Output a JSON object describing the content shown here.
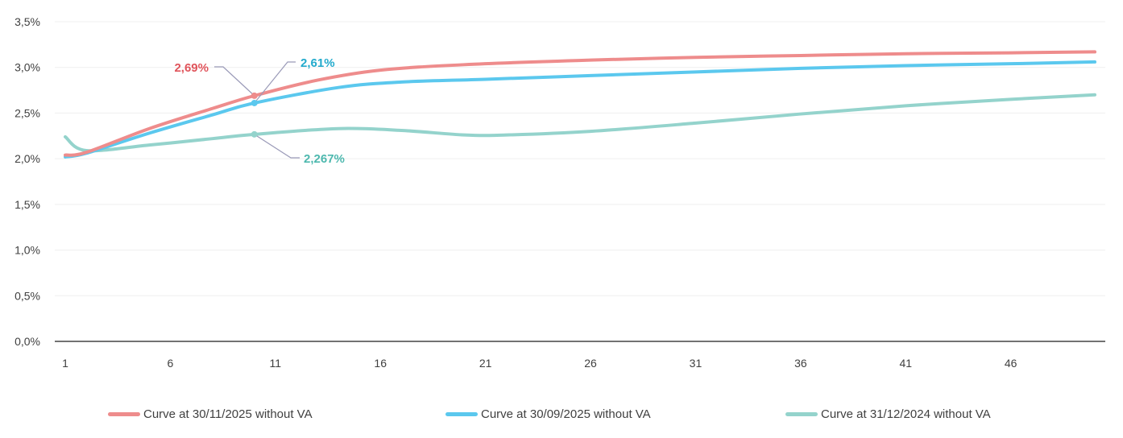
{
  "chart_data": {
    "type": "line",
    "title": "",
    "xlabel": "",
    "ylabel": "",
    "xlim": [
      1,
      50
    ],
    "ylim": [
      0,
      3.5
    ],
    "x_ticks": [
      1,
      6,
      11,
      16,
      21,
      26,
      31,
      36,
      41,
      46
    ],
    "x_tick_labels": [
      "1",
      "6",
      "11",
      "16",
      "21",
      "26",
      "31",
      "36",
      "41",
      "46"
    ],
    "y_ticks": [
      0,
      0.5,
      1.0,
      1.5,
      2.0,
      2.5,
      3.0,
      3.5
    ],
    "y_tick_labels": [
      "0,0%",
      "0,5%",
      "1,0%",
      "1,5%",
      "2,0%",
      "2,5%",
      "3,0%",
      "3,5%"
    ],
    "grid": true,
    "legend_position": "bottom",
    "series": [
      {
        "name": "Curve at 30/11/2025 without VA",
        "color": "#ee8c8c",
        "x": [
          1,
          2,
          5,
          8,
          10,
          13,
          16,
          20,
          26,
          31,
          36,
          41,
          46,
          50
        ],
        "values": [
          2.04,
          2.07,
          2.33,
          2.55,
          2.69,
          2.86,
          2.97,
          3.03,
          3.08,
          3.11,
          3.13,
          3.15,
          3.16,
          3.17
        ]
      },
      {
        "name": "Curve at 30/09/2025 without VA",
        "color": "#5bc8ee",
        "x": [
          1,
          2,
          5,
          8,
          10,
          14,
          17,
          21,
          26,
          31,
          36,
          41,
          46,
          50
        ],
        "values": [
          2.02,
          2.06,
          2.28,
          2.48,
          2.61,
          2.78,
          2.84,
          2.87,
          2.91,
          2.95,
          2.99,
          3.02,
          3.04,
          3.06
        ]
      },
      {
        "name": "Curve at 31/12/2024 without VA",
        "color": "#94d3cc",
        "x": [
          1,
          2,
          5,
          8,
          10,
          14,
          17,
          20,
          22,
          26,
          31,
          36,
          41,
          46,
          50
        ],
        "values": [
          2.24,
          2.09,
          2.15,
          2.22,
          2.267,
          2.33,
          2.31,
          2.26,
          2.26,
          2.3,
          2.39,
          2.49,
          2.58,
          2.65,
          2.7
        ]
      }
    ],
    "annotations": [
      {
        "series": 0,
        "x": 10,
        "value": 2.69,
        "label": "2,69%",
        "color": "#e0555c"
      },
      {
        "series": 1,
        "x": 10,
        "value": 2.61,
        "label": "2,61%",
        "color": "#22aacc"
      },
      {
        "series": 2,
        "x": 10,
        "value": 2.267,
        "label": "2,267%",
        "color": "#4db8ae"
      }
    ]
  }
}
